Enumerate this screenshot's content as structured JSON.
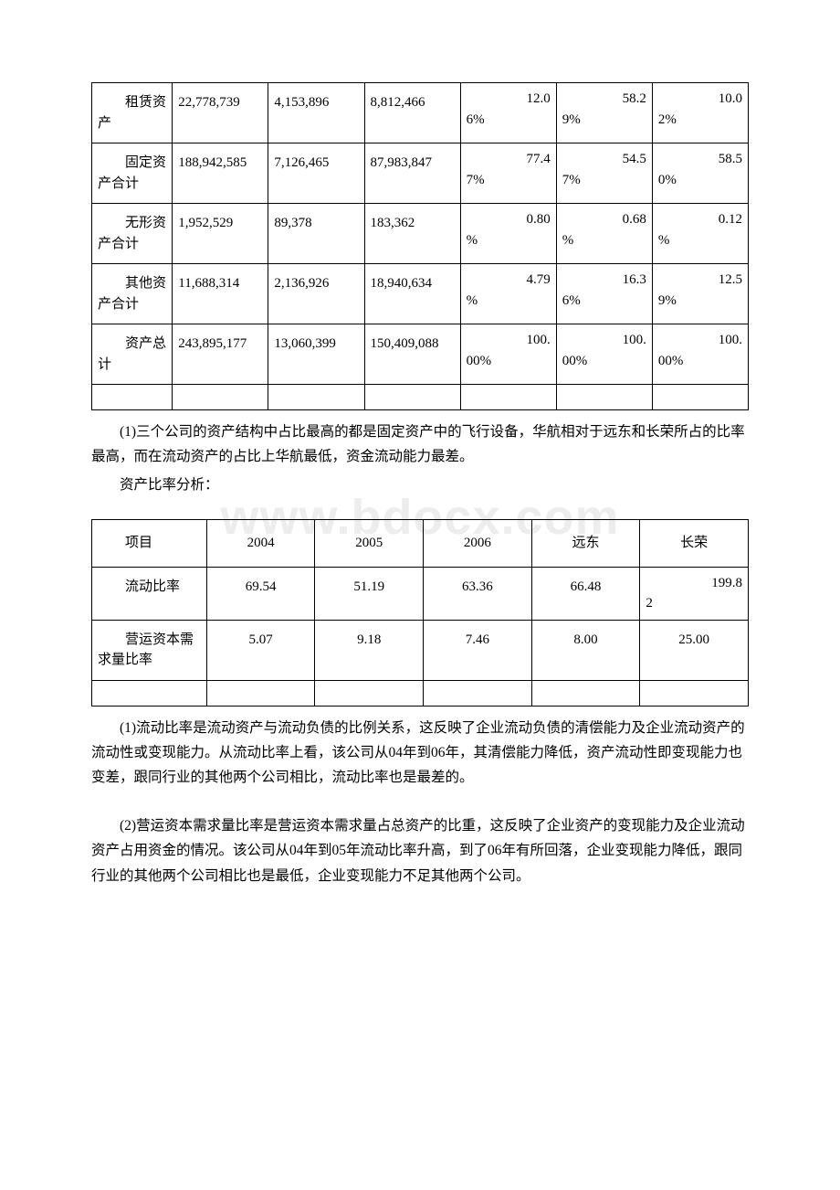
{
  "watermark": "www.bdocx.com",
  "table1": {
    "rows": [
      {
        "label": "租赁资产",
        "c1": "22,778,739",
        "c2": "4,153,896",
        "c3": "8,812,466",
        "p1n": "12.0",
        "p1s": "6%",
        "p2n": "58.2",
        "p2s": "9%",
        "p3n": "10.0",
        "p3s": "2%"
      },
      {
        "label": "固定资产合计",
        "c1": "188,942,585",
        "c2": "7,126,465",
        "c3": "87,983,847",
        "p1n": "77.4",
        "p1s": "7%",
        "p2n": "54.5",
        "p2s": "7%",
        "p3n": "58.5",
        "p3s": "0%"
      },
      {
        "label": "无形资产合计",
        "c1": "1,952,529",
        "c2": "89,378",
        "c3": "183,362",
        "p1n": "0.80",
        "p1s": "%",
        "p2n": "0.68",
        "p2s": "%",
        "p3n": "0.12",
        "p3s": "%"
      },
      {
        "label": "其他资产合计",
        "c1": "11,688,314",
        "c2": "2,136,926",
        "c3": "18,940,634",
        "p1n": "4.79",
        "p1s": "%",
        "p2n": "16.3",
        "p2s": "6%",
        "p3n": "12.5",
        "p3s": "9%"
      },
      {
        "label": "资产总计",
        "c1": "243,895,177",
        "c2": "13,060,399",
        "c3": "150,409,088",
        "p1n": "100.",
        "p1s": "00%",
        "p2n": "100.",
        "p2s": "00%",
        "p3n": "100.",
        "p3s": "00%"
      }
    ]
  },
  "para1": "(1)三个公司的资产结构中占比最高的都是固定资产中的飞行设备，华航相对于远东和长荣所占的比率最高，而在流动资产的占比上华航最低，资金流动能力最差。",
  "subhead": "资产比率分析：",
  "table2": {
    "headers": [
      "项目",
      "2004",
      "2005",
      "2006",
      "远东",
      "长荣"
    ],
    "rows": [
      {
        "label": "流动比率",
        "v": [
          "69.54",
          "51.19",
          "63.36",
          "66.48"
        ],
        "last_n": "199.8",
        "last_d": "2"
      },
      {
        "label": "营运资本需求量比率",
        "v": [
          "5.07",
          "9.18",
          "7.46",
          "8.00",
          "25.00"
        ]
      }
    ]
  },
  "para2": "(1)流动比率是流动资产与流动负债的比例关系，这反映了企业流动负债的清偿能力及企业流动资产的流动性或变现能力。从流动比率上看，该公司从04年到06年，其清偿能力降低，资产流动性即变现能力也变差，跟同行业的其他两个公司相比，流动比率也是最差的。",
  "para3": "(2)营运资本需求量比率是营运资本需求量占总资产的比重，这反映了企业资产的变现能力及企业流动资产占用资金的情况。该公司从04年到05年流动比率升高，到了06年有所回落，企业变现能力降低，跟同行业的其他两个公司相比也是最低，企业变现能力不足其他两个公司。"
}
